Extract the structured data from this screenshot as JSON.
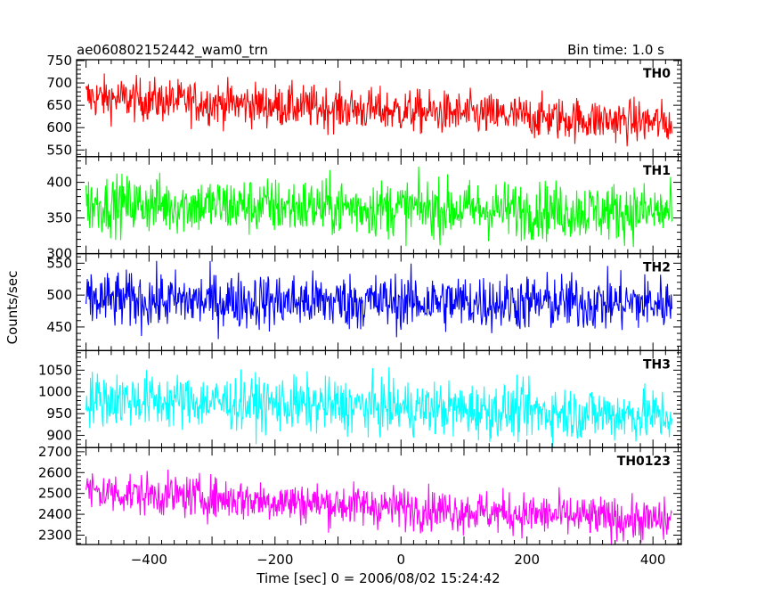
{
  "header": {
    "title": "ae060802152442_wam0_trn",
    "bin_time": "Bin time: 1.0 s"
  },
  "chart_data": {
    "type": "line",
    "title": "ae060802152442_wam0_trn",
    "subtitle": "Bin time: 1.0 s",
    "xlabel": "Time [sec] 0 = 2006/08/02 15:24:42",
    "ylabel": "Counts/sec",
    "xlim": [
      -515,
      445
    ],
    "x_start": -500,
    "x_end": 430,
    "x_step": 1,
    "xticks": [
      -400,
      -200,
      0,
      200,
      400
    ],
    "grid": false,
    "legend": "none",
    "panels": [
      {
        "name": "TH0",
        "color": "#ff0000",
        "ylim": [
          535,
          752
        ],
        "yticks": [
          550,
          600,
          650,
          700,
          750
        ],
        "trend_start": 668,
        "trend_end": 610,
        "noise_amplitude": 24
      },
      {
        "name": "TH1",
        "color": "#00ff00",
        "ylim": [
          300,
          436
        ],
        "yticks": [
          300,
          350,
          400
        ],
        "trend_start": 370,
        "trend_end": 358,
        "noise_amplitude": 20
      },
      {
        "name": "TH2",
        "color": "#0000ff",
        "ylim": [
          413,
          565
        ],
        "yticks": [
          450,
          500,
          550
        ],
        "trend_start": 492,
        "trend_end": 487,
        "noise_amplitude": 22
      },
      {
        "name": "TH3",
        "color": "#00ffff",
        "ylim": [
          872,
          1095
        ],
        "yticks": [
          900,
          950,
          1000,
          1050
        ],
        "trend_start": 985,
        "trend_end": 945,
        "noise_amplitude": 31
      },
      {
        "name": "TH0123",
        "color": "#ff00ff",
        "ylim": [
          2255,
          2720
        ],
        "yticks": [
          2300,
          2400,
          2500,
          2600,
          2700
        ],
        "trend_start": 2510,
        "trend_end": 2365,
        "noise_amplitude": 50
      }
    ]
  }
}
